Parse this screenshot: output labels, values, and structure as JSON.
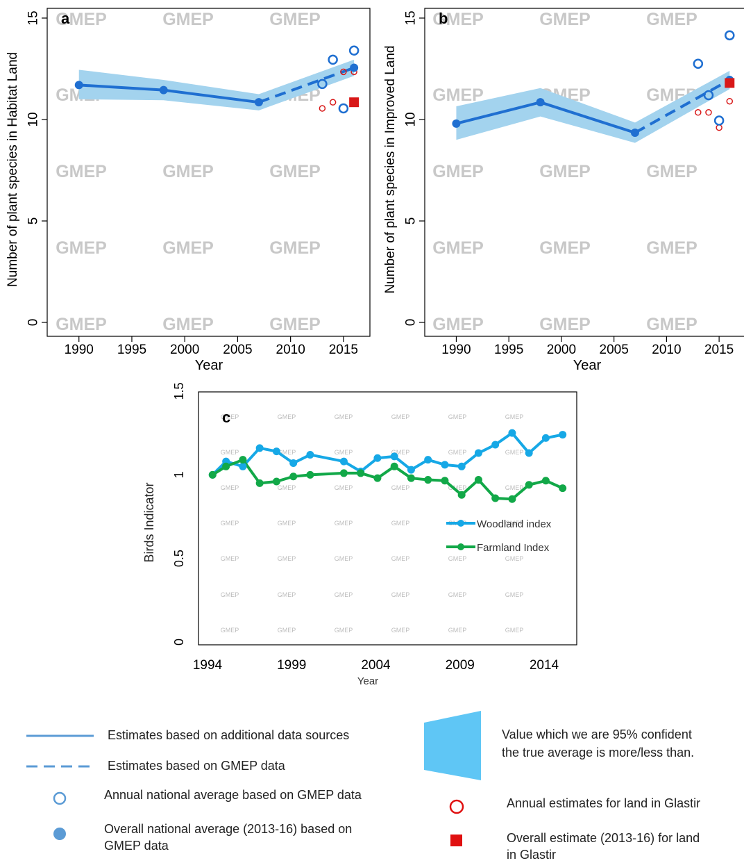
{
  "watermark": "GMEP",
  "colors": {
    "main_blue": "#1f6fd1",
    "ci_band": "#a3d3ee",
    "glastir_red": "#d81818",
    "woodland": "#16a8e6",
    "farmland": "#12a848",
    "legend_band": "#5fc6f5"
  },
  "chart_data": [
    {
      "type": "line",
      "panel_label": "a",
      "xlabel": "Year",
      "ylabel": "Number of plant species in Habitat Land",
      "xlim": [
        1987,
        2017.5
      ],
      "ylim": [
        0,
        15
      ],
      "xticks": [
        "1990",
        "1995",
        "2000",
        "2005",
        "2010",
        "2015"
      ],
      "yticks": [
        "0",
        "5",
        "10",
        "15"
      ],
      "series": [
        {
          "style": "solid",
          "x": [
            1990,
            1998,
            2007
          ],
          "y": [
            11.7,
            11.45,
            10.85
          ]
        },
        {
          "style": "dashed",
          "x": [
            2007,
            2016
          ],
          "y": [
            10.85,
            12.55
          ]
        }
      ],
      "ci_band": {
        "x": [
          1990,
          1998,
          2007,
          2016
        ],
        "lower": [
          11.0,
          10.95,
          10.45,
          12.15
        ],
        "upper": [
          12.45,
          11.95,
          11.25,
          12.95
        ]
      },
      "annual_gmep": {
        "x": [
          2013,
          2014,
          2015,
          2016
        ],
        "y": [
          11.75,
          12.95,
          10.55,
          13.4
        ]
      },
      "overall_gmep": {
        "x": 2016,
        "y": 12.55
      },
      "annual_glastir": {
        "x": [
          2013,
          2014,
          2015,
          2016
        ],
        "y": [
          10.55,
          10.85,
          12.35,
          12.35
        ]
      },
      "overall_glastir": {
        "x": 2016,
        "y": 10.85
      }
    },
    {
      "type": "line",
      "panel_label": "b",
      "xlabel": "Year",
      "ylabel": "Number of plant species in Improved Land",
      "xlim": [
        1987,
        2017.5
      ],
      "ylim": [
        0,
        15
      ],
      "xticks": [
        "1990",
        "1995",
        "2000",
        "2005",
        "2010",
        "2015"
      ],
      "yticks": [
        "0",
        "5",
        "10",
        "15"
      ],
      "series": [
        {
          "style": "solid",
          "x": [
            1990,
            1998,
            2007
          ],
          "y": [
            9.8,
            10.85,
            9.35
          ]
        },
        {
          "style": "dashed",
          "x": [
            2007,
            2016
          ],
          "y": [
            9.35,
            11.95
          ]
        }
      ],
      "ci_band": {
        "x": [
          1990,
          1998,
          2007,
          2016
        ],
        "lower": [
          9.0,
          10.15,
          8.85,
          11.5
        ],
        "upper": [
          10.65,
          11.55,
          9.85,
          12.4
        ]
      },
      "annual_gmep": {
        "x": [
          2013,
          2014,
          2015,
          2016
        ],
        "y": [
          12.75,
          11.2,
          9.95,
          14.15
        ]
      },
      "overall_gmep": {
        "x": 2016,
        "y": 11.95
      },
      "annual_glastir": {
        "x": [
          2013,
          2014,
          2015,
          2016
        ],
        "y": [
          10.35,
          10.35,
          9.6,
          10.9
        ]
      },
      "overall_glastir": {
        "x": 2016,
        "y": 11.8
      }
    },
    {
      "type": "line",
      "panel_label": "c",
      "xlabel": "Year",
      "ylabel": "Birds Indicator",
      "xlim": [
        1993.5,
        2016
      ],
      "ylim": [
        0,
        1.5
      ],
      "xticks": [
        "1994",
        "1999",
        "2004",
        "2009",
        "2014"
      ],
      "yticks": [
        "0",
        "0.5",
        "1",
        "1.5"
      ],
      "x": [
        1994.3,
        1995.1,
        1996.1,
        1997.1,
        1998.1,
        1999.1,
        2000.1,
        2002.1,
        2003.1,
        2004.1,
        2005.1,
        2006.1,
        2007.1,
        2008.1,
        2009.1,
        2010.1,
        2011.1,
        2012.1,
        2013.1,
        2014.1,
        2015.1
      ],
      "series": [
        {
          "name": "Woodland index",
          "values": [
            1.0,
            1.08,
            1.05,
            1.16,
            1.14,
            1.07,
            1.12,
            1.08,
            1.02,
            1.1,
            1.11,
            1.03,
            1.09,
            1.06,
            1.05,
            1.13,
            1.18,
            1.25,
            1.13,
            1.22,
            1.24
          ]
        },
        {
          "name": "Farmland Index",
          "values": [
            1.0,
            1.05,
            1.09,
            0.95,
            0.96,
            0.99,
            1.0,
            1.01,
            1.01,
            0.98,
            1.05,
            0.98,
            0.97,
            0.965,
            0.88,
            0.97,
            0.86,
            0.855,
            0.94,
            0.965,
            0.92
          ]
        }
      ]
    }
  ],
  "legend": {
    "solid_line": "Estimates based on additional data sources",
    "dashed_line": "Estimates based on GMEP data",
    "open_circle": "Annual national average based on GMEP data",
    "filled_circle": "Overall national average (2013-16) based on GMEP data",
    "band": "Value which we are 95% confident the true average is more/less than.",
    "red_circle": "Annual estimates for land in Glastir",
    "red_square": "Overall estimate (2013-16) for land in Glastir"
  }
}
